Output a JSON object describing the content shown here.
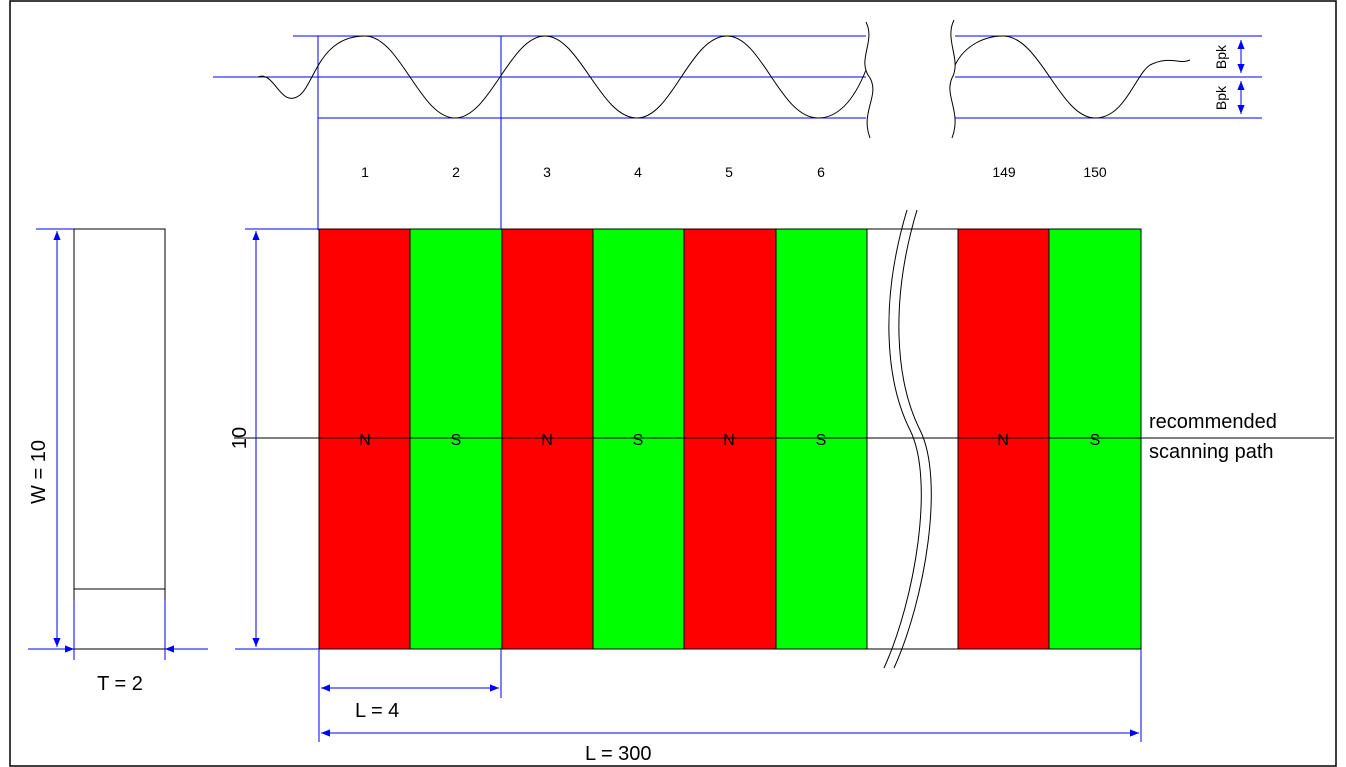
{
  "pole_numbers": [
    "1",
    "2",
    "3",
    "4",
    "5",
    "6",
    "149",
    "150"
  ],
  "pole_letters": [
    "N",
    "S",
    "N",
    "S",
    "N",
    "S",
    "N",
    "S"
  ],
  "labels": {
    "width_dim": "W = 10",
    "thickness_dim": "T = 2",
    "height_dim": "10",
    "pole_length": "L = 4",
    "total_length": "L = 300",
    "path_line1": "recommended",
    "path_line2": "scanning path",
    "bpk_top": "Bpk",
    "bpk_bottom": "Bpk"
  },
  "colors": {
    "north": "#ff0000",
    "south": "#00ff00",
    "dimension": "#0000ff",
    "outline": "#000000"
  }
}
